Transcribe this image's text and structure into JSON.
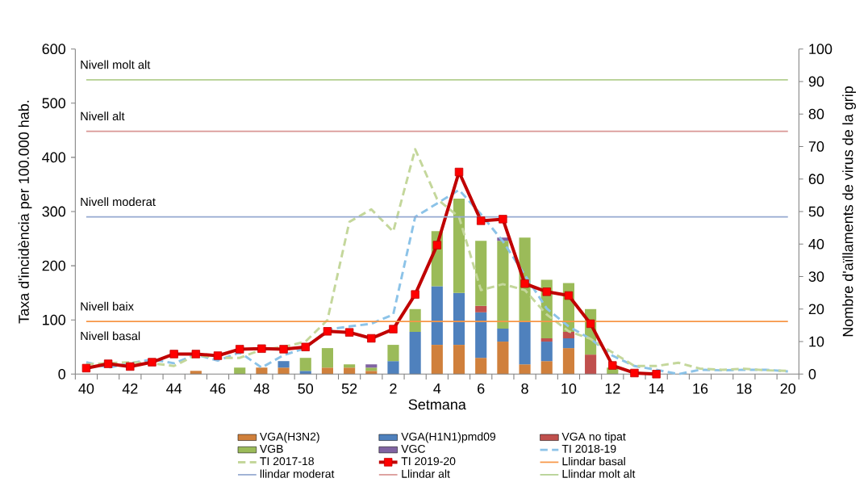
{
  "chart_data": {
    "type": "bar",
    "stacked": true,
    "xlabel": "Setmana",
    "ylabel": "Taxa d'incidència per 100.000 hab.",
    "y2label": "Nombre d'aïllaments de virus de la grip",
    "categories": [
      "40",
      null,
      "42",
      null,
      "44",
      null,
      "46",
      null,
      "48",
      null,
      "50",
      null,
      "52",
      null,
      "2",
      null,
      "4",
      null,
      "6",
      null,
      "8",
      null,
      "10",
      null,
      "12",
      null,
      "14",
      null,
      "16",
      null,
      "18",
      null,
      "20"
    ],
    "ylim": [
      0,
      600
    ],
    "yticks": [
      0,
      100,
      200,
      300,
      400,
      500,
      600
    ],
    "y2lim": [
      0,
      100
    ],
    "y2ticks": [
      0,
      10,
      20,
      30,
      40,
      50,
      60,
      70,
      80,
      90,
      100
    ],
    "legend": "bottom",
    "series": [
      {
        "name": "VGA(H3N2)",
        "type": "bar",
        "axis": "y2",
        "color": "#d0803c",
        "values": [
          null,
          null,
          null,
          null,
          null,
          1,
          null,
          null,
          2,
          2,
          null,
          2,
          2,
          1,
          null,
          null,
          9,
          9,
          5,
          10,
          3,
          4,
          8,
          null,
          null,
          null,
          null,
          null,
          null,
          null,
          null,
          null,
          null
        ]
      },
      {
        "name": "VGA(H1N1)pmd09",
        "type": "bar",
        "axis": "y2",
        "color": "#4f81bd",
        "values": [
          null,
          null,
          null,
          null,
          null,
          null,
          null,
          null,
          null,
          2,
          1,
          null,
          null,
          null,
          4,
          13,
          18,
          16,
          14,
          4,
          13,
          6,
          3,
          null,
          null,
          null,
          null,
          null,
          null,
          null,
          null,
          null,
          null
        ]
      },
      {
        "name": "VGA no tipat",
        "type": "bar",
        "axis": "y2",
        "color": "#c0504d",
        "values": [
          null,
          null,
          null,
          null,
          null,
          null,
          null,
          null,
          null,
          null,
          null,
          null,
          null,
          null,
          null,
          null,
          null,
          null,
          2,
          null,
          null,
          1,
          2,
          6,
          null,
          null,
          null,
          null,
          null,
          null,
          null,
          null,
          null
        ]
      },
      {
        "name": "VGB",
        "type": "bar",
        "axis": "y2",
        "color": "#9bbb59",
        "values": [
          null,
          null,
          null,
          null,
          null,
          null,
          null,
          2,
          null,
          null,
          4,
          6,
          1,
          1,
          5,
          7,
          17,
          29,
          20,
          27,
          26,
          18,
          15,
          14,
          2,
          null,
          null,
          null,
          null,
          null,
          null,
          null,
          null
        ]
      },
      {
        "name": "VGC",
        "type": "bar",
        "axis": "y2",
        "color": "#8064a2",
        "values": [
          null,
          null,
          null,
          null,
          null,
          null,
          null,
          null,
          null,
          null,
          null,
          null,
          null,
          1,
          null,
          null,
          null,
          null,
          null,
          1,
          null,
          null,
          null,
          null,
          null,
          null,
          null,
          null,
          null,
          null,
          null,
          null,
          null
        ]
      },
      {
        "name": "TI 2018-19",
        "type": "line",
        "axis": "y",
        "color": "#8cc3e8",
        "line_style": "dashed",
        "marker": "none",
        "values": [
          22,
          12,
          20,
          27,
          20,
          36,
          25,
          40,
          12,
          35,
          48,
          82,
          88,
          93,
          110,
          290,
          315,
          340,
          295,
          245,
          183,
          121,
          88,
          65,
          34,
          15,
          8,
          0,
          8,
          7,
          8,
          8,
          5
        ]
      },
      {
        "name": "TI 2017-18",
        "type": "line",
        "axis": "y",
        "color": "#c4d79b",
        "line_style": "dashed",
        "marker": "none",
        "values": [
          18,
          20,
          22,
          20,
          15,
          35,
          30,
          30,
          45,
          50,
          60,
          100,
          281,
          304,
          263,
          415,
          323,
          290,
          155,
          166,
          155,
          110,
          79,
          65,
          40,
          15,
          15,
          21,
          10,
          8,
          10,
          7,
          6
        ]
      },
      {
        "name": "TI 2019-20",
        "type": "line",
        "axis": "y",
        "color": "#c00000",
        "line_style": "solid",
        "marker": "square",
        "values": [
          11,
          19,
          14,
          22,
          37,
          37,
          34,
          46,
          47,
          46,
          50,
          79,
          77,
          66,
          83,
          147,
          238,
          373,
          283,
          286,
          167,
          152,
          145,
          93,
          16,
          2,
          0,
          null,
          null,
          null,
          null,
          null,
          null
        ]
      }
    ],
    "ref_lines": [
      {
        "axis": "y",
        "value": 97,
        "label": "Llindar basal",
        "color": "#f79646"
      },
      {
        "axis": "y",
        "value": 290,
        "label": "llindar moderat",
        "color": "#95a9d0"
      },
      {
        "axis": "y",
        "value": 448,
        "label": "Llindar alt",
        "color": "#d99795"
      },
      {
        "axis": "y",
        "value": 543,
        "label": "Llindar molt alt",
        "color": "#b3cf8f"
      }
    ],
    "annotations": [
      "Nivell molt alt",
      "Nivell alt",
      "Nivell moderat",
      "Nivell baix",
      "Nivell basal"
    ]
  }
}
